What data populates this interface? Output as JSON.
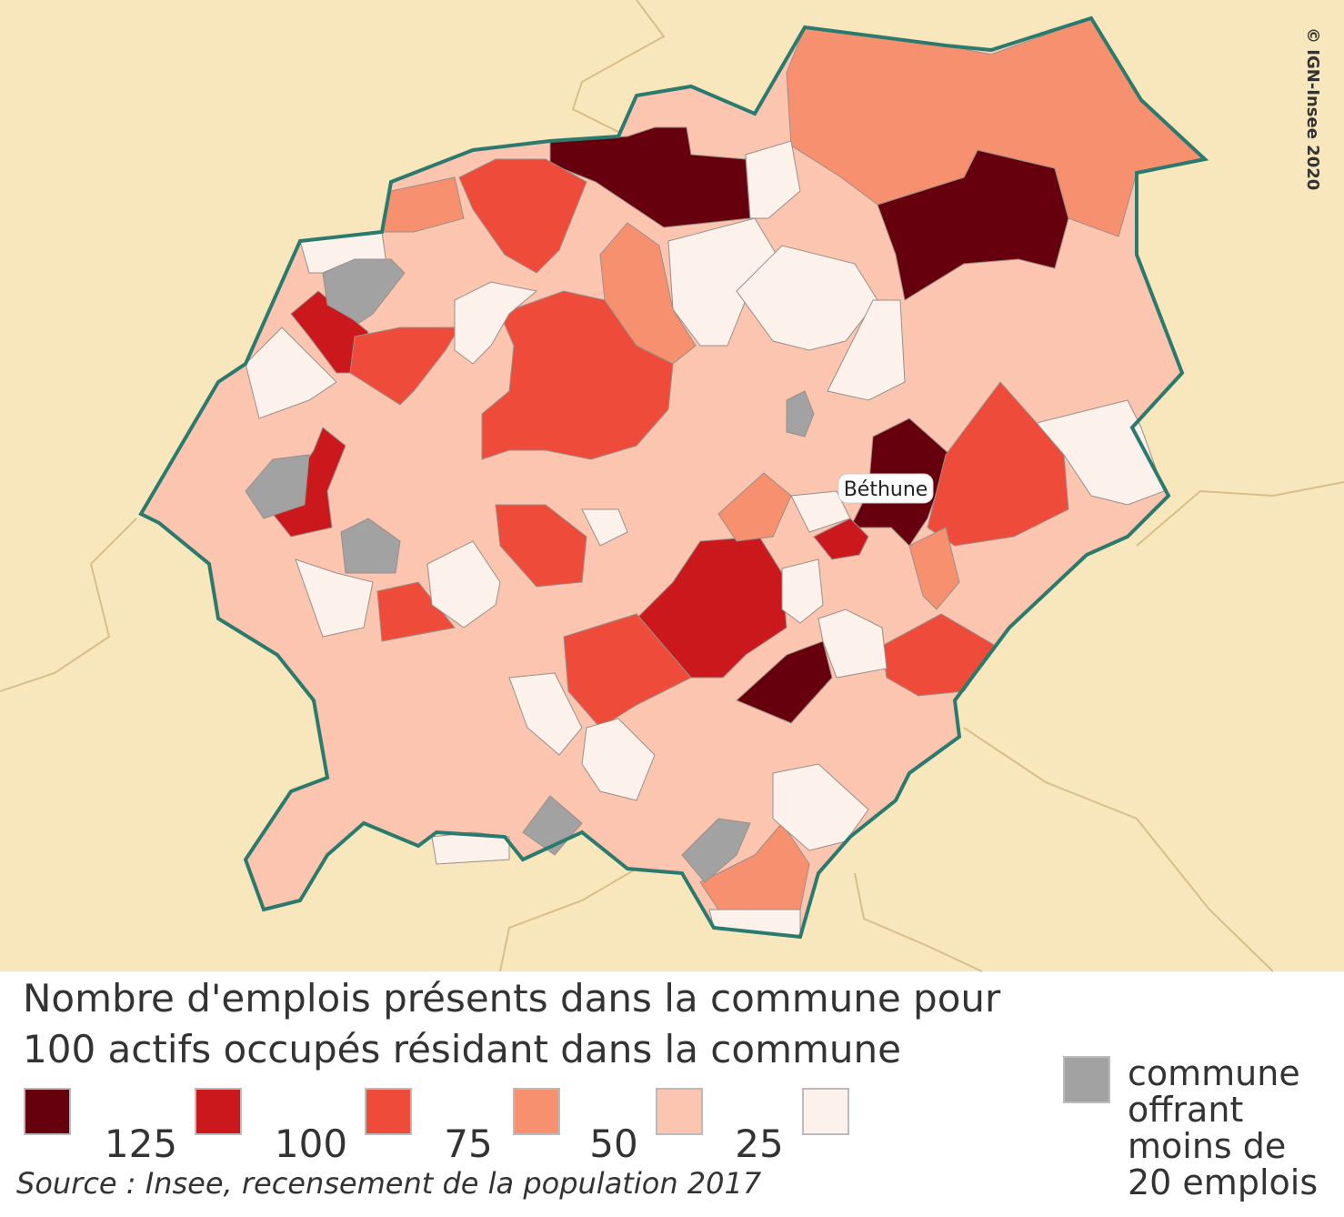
{
  "map": {
    "credit": "© IGN-Insee 2020",
    "place_label": "Béthune"
  },
  "legend": {
    "title": [
      "Nombre d'emplois présents dans la commune pour",
      "100 actifs occupés résidant dans la commune"
    ],
    "classes": [
      {
        "color": "#67000d"
      },
      {
        "color": "#cb181d"
      },
      {
        "color": "#ef4b3a"
      },
      {
        "color": "#f7906f"
      },
      {
        "color": "#fcc5b0"
      },
      {
        "color": "#fdf1ec"
      }
    ],
    "breaks": [
      125,
      100,
      75,
      50,
      25
    ],
    "no_data": {
      "color": "#a2a2a2",
      "label": [
        "commune",
        "offrant",
        "moins de",
        "20 emplois"
      ]
    }
  },
  "source": "Source : Insee, recensement de la population 2017"
}
